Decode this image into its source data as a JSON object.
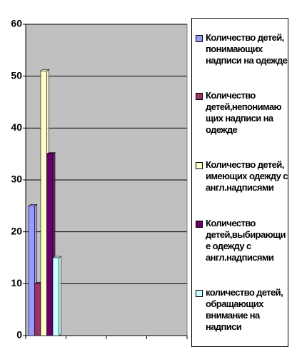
{
  "chart_data": {
    "type": "bar",
    "categories": [
      null
    ],
    "series": [
      {
        "name": "Количество детей, понимающих надписи на одежде",
        "color": "#9999ff",
        "values": [
          25
        ]
      },
      {
        "name": "Количество детей,непонимающих надписи на одежде",
        "color": "#993366",
        "values": [
          10
        ]
      },
      {
        "name": "Количество детей, имеющих одежду с англ.надписями",
        "color": "#ffffcc",
        "values": [
          51
        ]
      },
      {
        "name": "Количество детей,выбирающие одежду с англ.надписями",
        "color": "#660066",
        "values": [
          35
        ]
      },
      {
        "name": "количество детей, обращающих внимание на надписи",
        "color": "#ccffff",
        "values": [
          15
        ]
      }
    ],
    "ylim": [
      0,
      60
    ],
    "yticks": [
      0,
      10,
      20,
      30,
      40,
      50,
      60
    ],
    "grid": true,
    "legend": "right"
  }
}
